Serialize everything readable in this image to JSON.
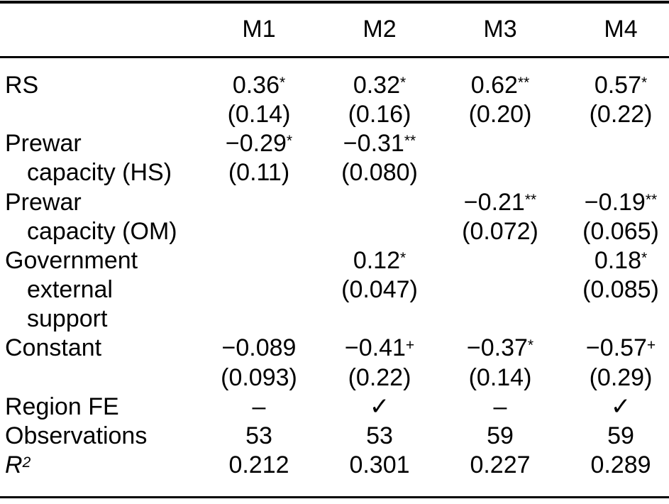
{
  "table": {
    "column_headers": [
      "M1",
      "M2",
      "M3",
      "M4"
    ],
    "lines": [
      {
        "name": "rs-coef",
        "label": "RS",
        "indent": false,
        "cells": [
          {
            "t": "0.36",
            "sup": "*"
          },
          {
            "t": "0.32",
            "sup": "*"
          },
          {
            "t": "0.62",
            "sup": "**"
          },
          {
            "t": "0.57",
            "sup": "*"
          }
        ]
      },
      {
        "name": "rs-se",
        "label": "",
        "indent": false,
        "cells": [
          {
            "t": "(0.14)"
          },
          {
            "t": "(0.16)"
          },
          {
            "t": "(0.20)"
          },
          {
            "t": "(0.22)"
          }
        ]
      },
      {
        "name": "prewar-hs-coef",
        "label": "Prewar",
        "indent": false,
        "cells": [
          {
            "t": "−0.29",
            "sup": "*"
          },
          {
            "t": "−0.31",
            "sup": "**"
          },
          null,
          null
        ]
      },
      {
        "name": "prewar-hs-se",
        "label": "capacity (HS)",
        "indent": true,
        "cells": [
          {
            "t": "(0.11)"
          },
          {
            "t": "(0.080)"
          },
          null,
          null
        ]
      },
      {
        "name": "prewar-om-coef",
        "label": "Prewar",
        "indent": false,
        "cells": [
          null,
          null,
          {
            "t": "−0.21",
            "sup": "**"
          },
          {
            "t": "−0.19",
            "sup": "**"
          }
        ]
      },
      {
        "name": "prewar-om-se",
        "label": "capacity (OM)",
        "indent": true,
        "cells": [
          null,
          null,
          {
            "t": "(0.072)"
          },
          {
            "t": "(0.065)"
          }
        ]
      },
      {
        "name": "govt-support-coef",
        "label": "Government",
        "indent": false,
        "cells": [
          null,
          {
            "t": "0.12",
            "sup": "*"
          },
          null,
          {
            "t": "0.18",
            "sup": "*"
          }
        ]
      },
      {
        "name": "govt-support-se",
        "label": "external",
        "indent": true,
        "cells": [
          null,
          {
            "t": "(0.047)"
          },
          null,
          {
            "t": "(0.085)"
          }
        ]
      },
      {
        "name": "govt-support-label3",
        "label": "support",
        "indent": true,
        "cells": [
          null,
          null,
          null,
          null
        ]
      },
      {
        "name": "constant-coef",
        "label": "Constant",
        "indent": false,
        "cells": [
          {
            "t": "−0.089"
          },
          {
            "t": "−0.41",
            "sup": "+"
          },
          {
            "t": "−0.37",
            "sup": "*"
          },
          {
            "t": "−0.57",
            "sup": "+"
          }
        ]
      },
      {
        "name": "constant-se",
        "label": "",
        "indent": false,
        "cells": [
          {
            "t": "(0.093)"
          },
          {
            "t": "(0.22)"
          },
          {
            "t": "(0.14)"
          },
          {
            "t": "(0.29)"
          }
        ]
      },
      {
        "name": "region-fe",
        "label": "Region FE",
        "indent": false,
        "cells": [
          {
            "t": "–"
          },
          {
            "t": "✓",
            "check": true
          },
          {
            "t": "–"
          },
          {
            "t": "✓",
            "check": true
          }
        ]
      },
      {
        "name": "observations",
        "label": "Observations",
        "indent": false,
        "cells": [
          {
            "t": "53"
          },
          {
            "t": "53"
          },
          {
            "t": "59"
          },
          {
            "t": "59"
          }
        ]
      },
      {
        "name": "r-squared",
        "label": "R",
        "label_sup": "2",
        "label_italic": true,
        "indent": false,
        "cells": [
          {
            "t": "0.212"
          },
          {
            "t": "0.301"
          },
          {
            "t": "0.227"
          },
          {
            "t": "0.289"
          }
        ]
      }
    ]
  },
  "colors": {
    "text": "#000000",
    "rule": "#000000",
    "background": "#ffffff"
  }
}
